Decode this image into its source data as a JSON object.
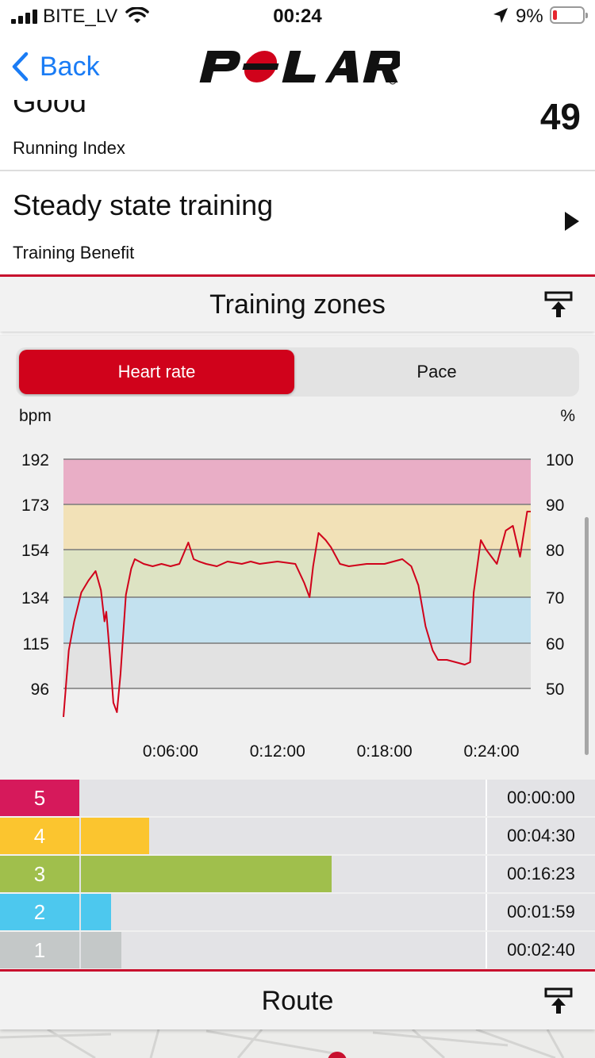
{
  "status_bar": {
    "carrier": "BITE_LV",
    "time": "00:24",
    "battery_pct": "9%",
    "battery_color": "#e5262f"
  },
  "nav": {
    "back_label": "Back",
    "logo_text": "POLAR",
    "logo_color": "#111111",
    "logo_accent": "#d0021b"
  },
  "running_index": {
    "value_word": "Good",
    "value": "49",
    "caption": "Running Index"
  },
  "training_benefit": {
    "title": "Steady state training",
    "caption": "Training Benefit"
  },
  "zones_section": {
    "title": "Training zones",
    "tabs": [
      {
        "label": "Heart rate",
        "active": true
      },
      {
        "label": "Pace",
        "active": false
      }
    ]
  },
  "chart_data": {
    "type": "line",
    "ylabel_left": "bpm",
    "ylabel_right": "%",
    "left_ticks": [
      192,
      173,
      154,
      134,
      115,
      96
    ],
    "right_ticks": [
      100,
      90,
      80,
      70,
      60,
      50
    ],
    "x_ticks": [
      "0:06:00",
      "0:12:00",
      "0:18:00",
      "0:24:00"
    ],
    "ylim": [
      96,
      192
    ],
    "xlim_minutes": [
      0,
      26.2
    ],
    "zone_bands": [
      {
        "zone": 5,
        "from": 173,
        "to": 192,
        "color": "#e9aec6"
      },
      {
        "zone": 4,
        "from": 154,
        "to": 173,
        "color": "#f2e1b7"
      },
      {
        "zone": 3,
        "from": 134,
        "to": 154,
        "color": "#dde3c3"
      },
      {
        "zone": 2,
        "from": 115,
        "to": 134,
        "color": "#c3e1ef"
      },
      {
        "zone": 1,
        "from": 96,
        "to": 115,
        "color": "#e2e2e2"
      }
    ],
    "line_color": "#d0021b",
    "series": [
      {
        "x_minutes": [
          0.0,
          0.3,
          0.6,
          1.0,
          1.4,
          1.8,
          2.1,
          2.3,
          2.4,
          2.6,
          2.8,
          3.0,
          3.2,
          3.5,
          3.8,
          4.0,
          4.5,
          5.0,
          5.5,
          6.0,
          6.5,
          7.0,
          7.3,
          7.6,
          8.0,
          8.6,
          9.2,
          10.0,
          10.5,
          11.0,
          12.0,
          13.0,
          13.5,
          13.8,
          14.0,
          14.3,
          14.7,
          15.0,
          15.5,
          16.0,
          17.0,
          18.0,
          19.0,
          19.5,
          19.9,
          20.3,
          20.7,
          21.0,
          21.5,
          22.0,
          22.5,
          22.8,
          23.0,
          23.4,
          23.7,
          24.0,
          24.3,
          24.8,
          25.2,
          25.6,
          26.0,
          26.2
        ],
        "values": [
          84,
          112,
          124,
          136,
          141,
          145,
          137,
          124,
          128,
          110,
          90,
          86,
          102,
          135,
          146,
          150,
          148,
          147,
          148,
          147,
          148,
          157,
          150,
          149,
          148,
          147,
          149,
          148,
          149,
          148,
          149,
          148,
          140,
          134,
          147,
          161,
          158,
          155,
          148,
          147,
          148,
          148,
          150,
          147,
          139,
          122,
          112,
          108,
          108,
          107,
          106,
          107,
          136,
          158,
          154,
          151,
          148,
          162,
          164,
          151,
          170,
          170
        ]
      }
    ]
  },
  "zone_bars": [
    {
      "zone": "5",
      "color": "#d6195b",
      "fill": 0.0,
      "duration": "00:00:00"
    },
    {
      "zone": "4",
      "color": "#fbc52f",
      "fill": 0.168,
      "duration": "00:04:30"
    },
    {
      "zone": "3",
      "color": "#a0bf4c",
      "fill": 0.62,
      "duration": "00:16:23"
    },
    {
      "zone": "2",
      "color": "#4dc8ee",
      "fill": 0.075,
      "duration": "00:01:59"
    },
    {
      "zone": "1",
      "color": "#c4c8c8",
      "fill": 0.1,
      "duration": "00:02:40"
    }
  ],
  "route_section": {
    "title": "Route"
  }
}
